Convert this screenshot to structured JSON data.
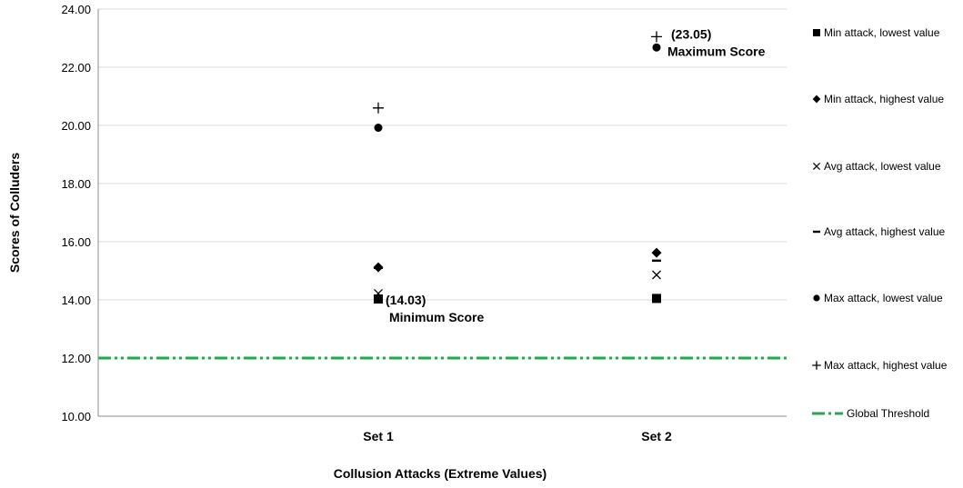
{
  "chart_data": {
    "type": "scatter",
    "title": "",
    "xlabel": "Collusion Attacks (Extreme Values)",
    "ylabel": "Scores of Colluders",
    "categories": [
      "Set 1",
      "Set 2"
    ],
    "ylim": [
      10,
      24
    ],
    "yticks": [
      "10.00",
      "12.00",
      "14.00",
      "16.00",
      "18.00",
      "20.00",
      "22.00",
      "24.00"
    ],
    "grid": true,
    "legend_position": "right",
    "series": [
      {
        "name": "Min attack, lowest value",
        "marker": "square",
        "values": [
          14.03,
          14.05
        ]
      },
      {
        "name": "Min attack, highest value",
        "marker": "diamond",
        "values": [
          15.12,
          15.62
        ]
      },
      {
        "name": "Avg attack, lowest value",
        "marker": "x",
        "values": [
          14.22,
          14.86
        ]
      },
      {
        "name": "Avg attack, highest value",
        "marker": "dash",
        "values": [
          15.1,
          15.35
        ]
      },
      {
        "name": "Max attack, lowest value",
        "marker": "circle",
        "values": [
          19.92,
          22.68
        ]
      },
      {
        "name": "Max attack, highest value",
        "marker": "plus",
        "values": [
          20.6,
          23.05
        ]
      }
    ],
    "threshold": {
      "name": "Global Threshold",
      "value": 12.0,
      "color": "#22aa4c"
    },
    "annotations": [
      {
        "line1": "(14.03)",
        "line2": "Minimum Score",
        "category": "Set 1",
        "value": 14.03
      },
      {
        "line1": "(23.05)",
        "line2": "Maximum Score",
        "category": "Set 2",
        "value": 23.05
      }
    ]
  }
}
